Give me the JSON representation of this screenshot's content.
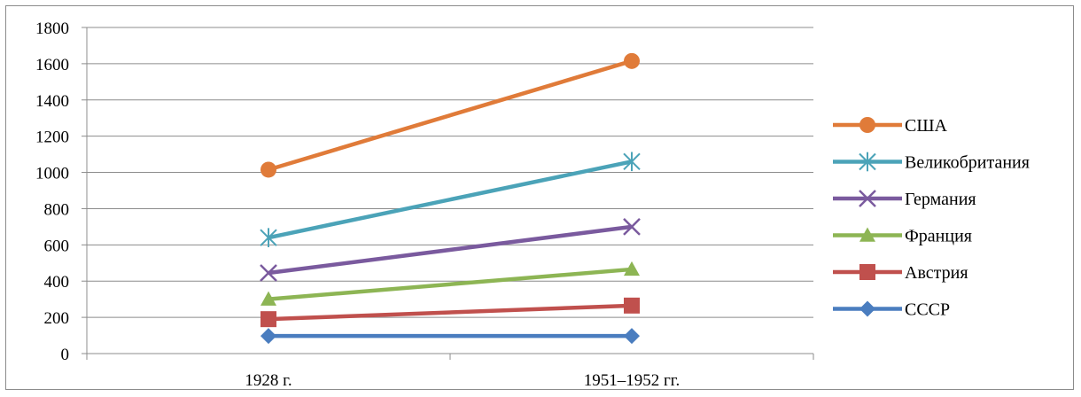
{
  "chart_data": {
    "type": "line",
    "categories": [
      "1928 г.",
      "1951–1952 гг."
    ],
    "ylim": [
      0,
      1800
    ],
    "yticks": [
      0,
      200,
      400,
      600,
      800,
      1000,
      1200,
      1400,
      1600,
      1800
    ],
    "grid": true,
    "legend_position": "right",
    "series": [
      {
        "name": "США",
        "values": [
          1015,
          1615
        ],
        "color": "#e07b39",
        "marker": "circle"
      },
      {
        "name": "Великобритания",
        "values": [
          640,
          1060
        ],
        "color": "#4ba3b8",
        "marker": "asterisk"
      },
      {
        "name": "Германия",
        "values": [
          445,
          700
        ],
        "color": "#7a5a9e",
        "marker": "cross"
      },
      {
        "name": "Франция",
        "values": [
          300,
          465
        ],
        "color": "#8db554",
        "marker": "triangle"
      },
      {
        "name": "Австрия",
        "values": [
          190,
          265
        ],
        "color": "#c0504d",
        "marker": "square"
      },
      {
        "name": "СССР",
        "values": [
          97,
          97
        ],
        "color": "#4a7dbf",
        "marker": "diamond"
      }
    ]
  }
}
